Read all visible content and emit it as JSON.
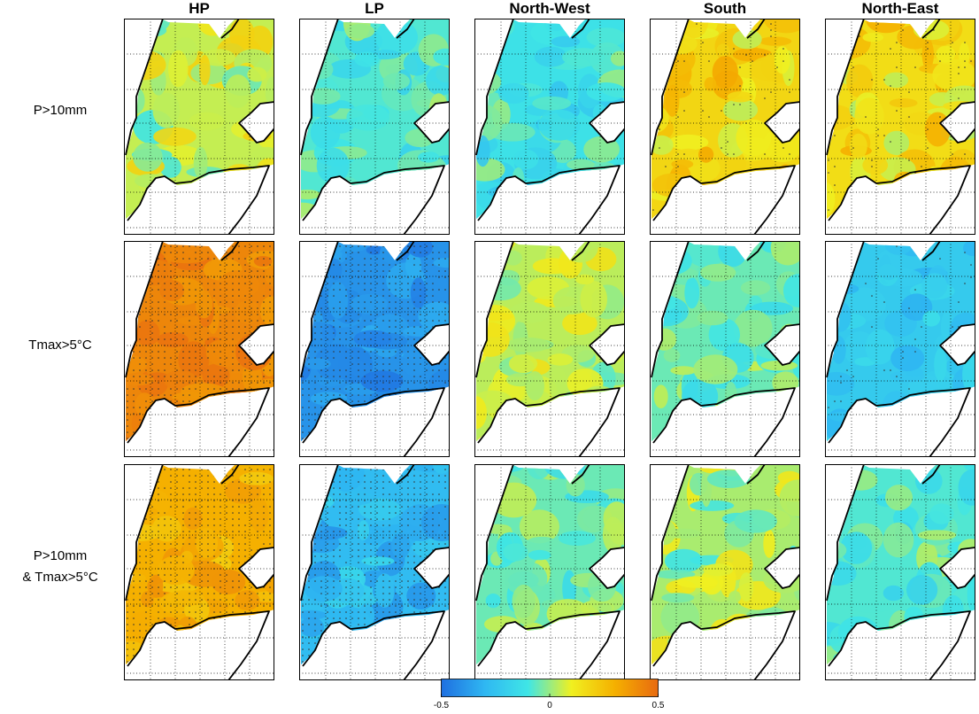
{
  "chart_data": {
    "type": "heatmap",
    "columns": [
      "HP",
      "LP",
      "North-West",
      "South",
      "North-East"
    ],
    "rows": [
      {
        "label_lines": [
          "P>10mm"
        ]
      },
      {
        "label_lines": [
          "Tmax>5°C"
        ]
      },
      {
        "label_lines": [
          "P>10mm",
          "& Tmax>5°C"
        ]
      }
    ],
    "panel_values": [
      [
        0.05,
        -0.08,
        -0.12,
        0.18,
        0.16
      ],
      [
        0.42,
        -0.4,
        0.04,
        -0.05,
        -0.22
      ],
      [
        0.3,
        -0.28,
        -0.05,
        0.02,
        -0.08
      ]
    ],
    "panel_spread": [
      [
        0.1,
        0.07,
        0.08,
        0.09,
        0.09
      ],
      [
        0.04,
        0.05,
        0.07,
        0.07,
        0.06
      ],
      [
        0.06,
        0.08,
        0.07,
        0.08,
        0.07
      ]
    ],
    "stippled": [
      [
        false,
        false,
        false,
        true,
        true
      ],
      [
        true,
        true,
        false,
        false,
        true
      ],
      [
        true,
        true,
        false,
        false,
        false
      ]
    ],
    "colorbar": {
      "min": -0.5,
      "max": 0.5,
      "ticks": [
        -0.5,
        0,
        0.5
      ],
      "tick_labels": [
        "-0.5",
        "0",
        "0.5"
      ],
      "colors": [
        "#1f6fe0",
        "#2fb7f2",
        "#3fe6e6",
        "#f0f020",
        "#f5b000",
        "#e86a10"
      ]
    },
    "grid": "dotted",
    "legend": "bottom-center"
  }
}
